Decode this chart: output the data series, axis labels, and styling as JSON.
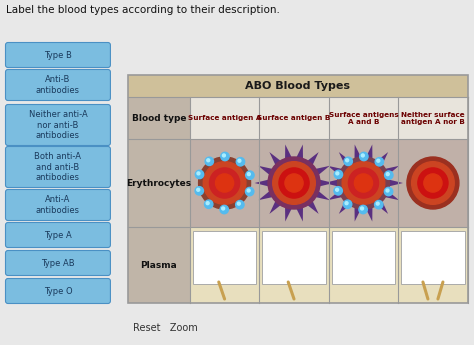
{
  "title": "Label the blood types according to their description.",
  "table_title": "ABO Blood Types",
  "page_bg": "#e8e8e8",
  "sidebar_buttons": [
    "Type B",
    "Anti-B\nantibodies",
    "Neither anti-A\nnor anti-B\nantibodies",
    "Both anti-A\nand anti-B\nantibodies",
    "Anti-A\nantibodies",
    "Type A",
    "Type AB",
    "Type O"
  ],
  "button_color": "#7bbde0",
  "button_border_color": "#4a90c4",
  "button_text_color": "#1a3a5c",
  "row_labels": [
    "Blood type",
    "Erythrocytes",
    "Plasma"
  ],
  "col_headers": [
    "Surface antigen A",
    "Surface antigen B",
    "Surface antigens\nA and B",
    "Neither surface\nantigen A nor B"
  ],
  "table_header_bg": "#cfc09a",
  "table_label_bg": "#c0b5a8",
  "table_erythro_bg": "#c0b0a8",
  "table_plasma_bg": "#e8dfbe",
  "table_blood_bg": "#e8e4dc",
  "table_border": "#999999",
  "reset_zoom_text": "Reset   Zoom",
  "stick_color": "#c8a050"
}
